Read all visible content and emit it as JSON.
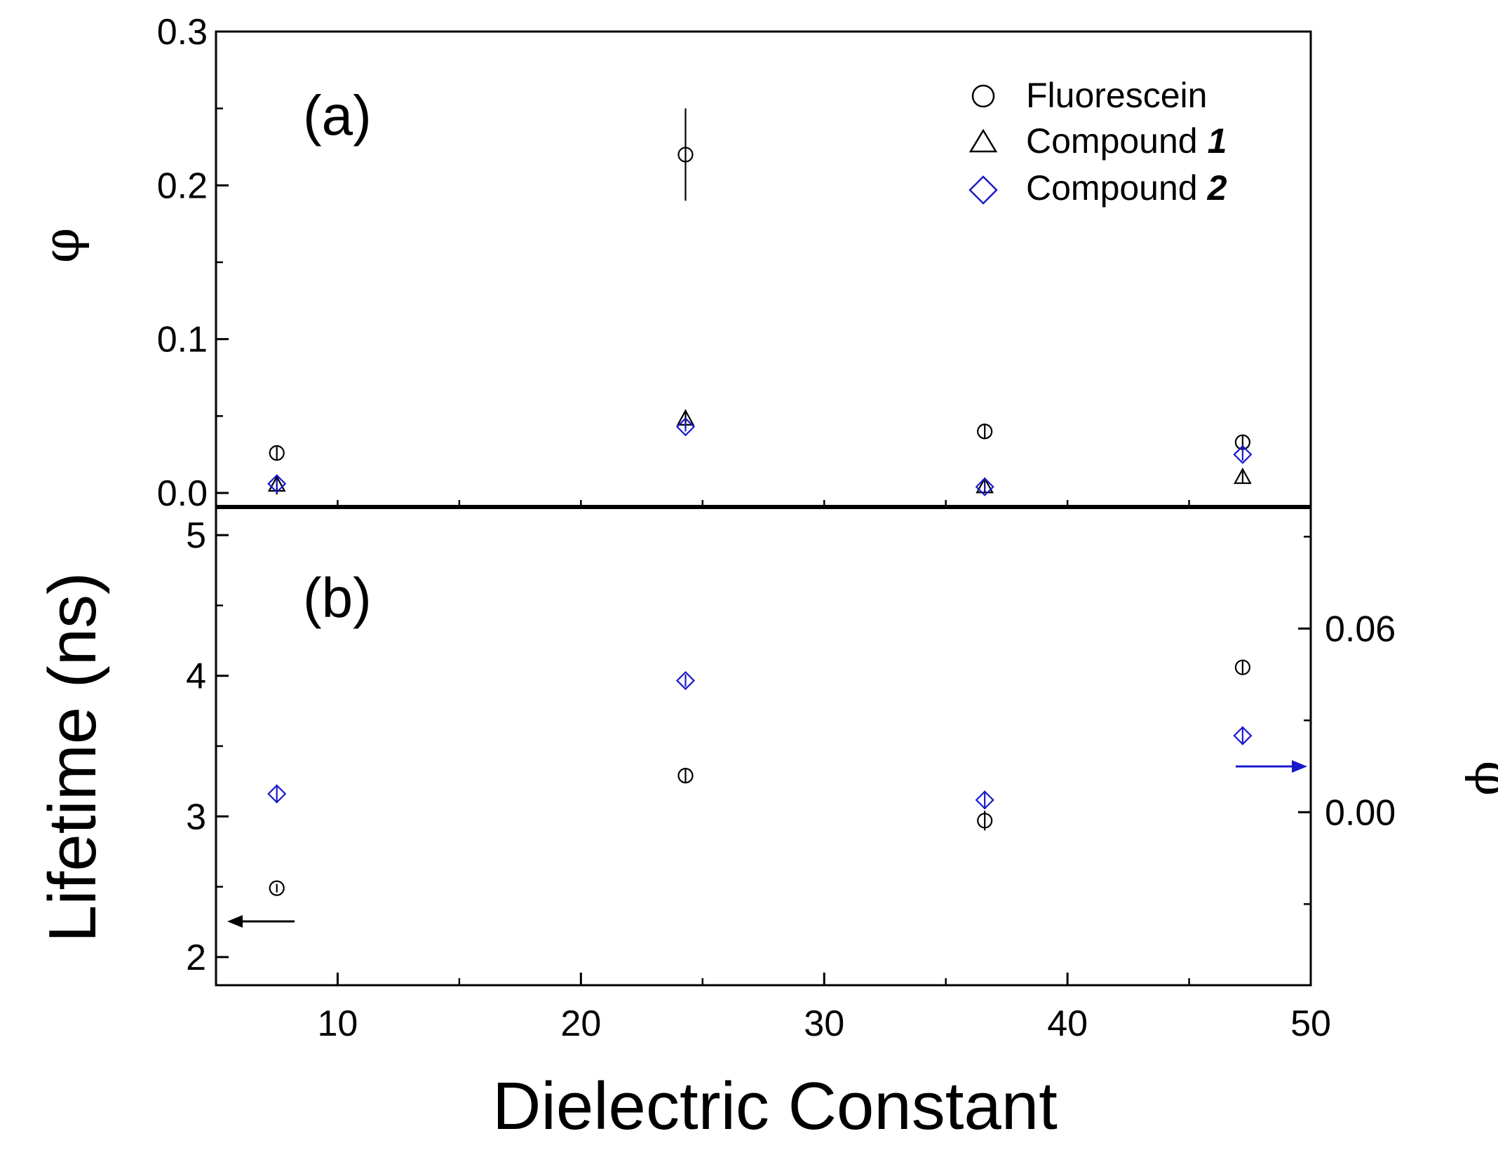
{
  "chart_data": [
    {
      "panel": "a",
      "panel_label": "(a)",
      "type": "scatter",
      "xlabel": "Dielectric Constant",
      "ylabel": "φ",
      "xlim": [
        5,
        50
      ],
      "ylim": [
        0.0,
        0.3
      ],
      "y_ticks": [
        0.0,
        0.1,
        0.2,
        0.3
      ],
      "y_tick_labels": [
        "0.0",
        "0.1",
        "0.2",
        "0.3"
      ],
      "legend": {
        "placement": "top-right",
        "entries": [
          {
            "marker": "circle",
            "text": "Fluorescein",
            "number": "",
            "color": "#000000"
          },
          {
            "marker": "triangle",
            "text": "Compound",
            "number": "1",
            "color": "#000000"
          },
          {
            "marker": "diamond",
            "text": "Compound",
            "number": "2",
            "color": "#1a1acc"
          }
        ]
      },
      "series": [
        {
          "name": "Fluorescein",
          "marker": "circle",
          "color": "#000000",
          "points": [
            {
              "x": 7.5,
              "y": 0.026,
              "err": 0.004
            },
            {
              "x": 24.3,
              "y": 0.22,
              "err": 0.03
            },
            {
              "x": 36.6,
              "y": 0.04,
              "err": 0.004
            },
            {
              "x": 47.2,
              "y": 0.033,
              "err": 0.004
            }
          ]
        },
        {
          "name": "Compound 1",
          "marker": "triangle",
          "color": "#000000",
          "points": [
            {
              "x": 7.5,
              "y": 0.005,
              "err": 0.006
            },
            {
              "x": 24.3,
              "y": 0.048,
              "err": 0.006
            },
            {
              "x": 36.6,
              "y": 0.004,
              "err": 0.004
            },
            {
              "x": 47.2,
              "y": 0.01,
              "err": 0.004
            }
          ]
        },
        {
          "name": "Compound 2",
          "marker": "diamond",
          "color": "#1a1acc",
          "points": [
            {
              "x": 7.5,
              "y": 0.006,
              "err": 0.003
            },
            {
              "x": 24.3,
              "y": 0.043,
              "err": 0.003
            },
            {
              "x": 36.6,
              "y": 0.004,
              "err": 0.003
            },
            {
              "x": 47.2,
              "y": 0.025,
              "err": 0.004
            }
          ]
        }
      ]
    },
    {
      "panel": "b",
      "panel_label": "(b)",
      "type": "scatter",
      "xlabel": "Dielectric Constant",
      "ylabel": "Lifetime (ns)",
      "y2label": "φ",
      "xlim": [
        5,
        50
      ],
      "ylim": [
        1.8,
        5.2
      ],
      "y2lim": [
        -0.0565,
        0.0997
      ],
      "x_ticks": [
        10,
        20,
        30,
        40,
        50
      ],
      "x_tick_labels": [
        "10",
        "20",
        "30",
        "40",
        "50"
      ],
      "y_ticks": [
        2,
        3,
        4,
        5
      ],
      "y_tick_labels": [
        "2",
        "3",
        "4",
        "5"
      ],
      "y2_ticks": [
        0.0,
        0.06
      ],
      "y2_tick_labels": [
        "0.00",
        "0.06"
      ],
      "arrows": [
        {
          "direction": "left",
          "points_to": "left axis",
          "color": "#000000"
        },
        {
          "direction": "right",
          "points_to": "right axis",
          "color": "#1a1acc"
        }
      ],
      "series": [
        {
          "name": "Fluorescein lifetime",
          "axis": "left",
          "marker": "circle",
          "color": "#000000",
          "points": [
            {
              "x": 7.5,
              "y": 2.49,
              "err": 0.03
            },
            {
              "x": 24.3,
              "y": 3.29,
              "err": 0.05
            },
            {
              "x": 36.6,
              "y": 2.97,
              "err": 0.07
            },
            {
              "x": 47.2,
              "y": 4.06,
              "err": 0.05
            }
          ]
        },
        {
          "name": "Compound 2 φ",
          "axis": "right",
          "marker": "diamond",
          "color": "#1a1acc",
          "points": [
            {
              "x": 7.5,
              "y": 0.006,
              "err": 0.003
            },
            {
              "x": 24.3,
              "y": 0.043,
              "err": 0.002
            },
            {
              "x": 36.6,
              "y": 0.004,
              "err": 0.003
            },
            {
              "x": 47.2,
              "y": 0.025,
              "err": 0.003
            }
          ]
        }
      ]
    }
  ]
}
